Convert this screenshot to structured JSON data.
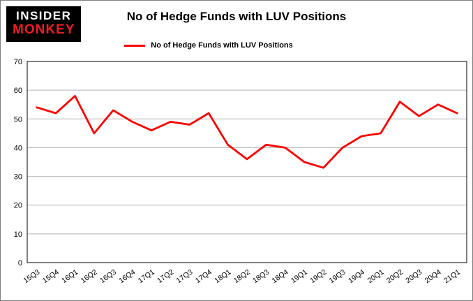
{
  "logo": {
    "line1": "INSIDER",
    "line2": "MONKEY"
  },
  "colors": {
    "line": "#fe0000",
    "grid": "#b5b5b5",
    "axis": "#000000",
    "logo_bg": "#000000",
    "logo_red": "#ee1c25"
  },
  "chart_data": {
    "type": "line",
    "title": "No of Hedge Funds with LUV Positions",
    "categories": [
      "15Q3",
      "15Q4",
      "16Q1",
      "16Q2",
      "16Q3",
      "16Q4",
      "17Q1",
      "17Q2",
      "17Q3",
      "17Q4",
      "18Q1",
      "18Q2",
      "18Q3",
      "18Q4",
      "19Q1",
      "19Q2",
      "19Q3",
      "19Q4",
      "20Q1",
      "20Q2",
      "20Q3",
      "20Q4",
      "21Q1"
    ],
    "series": [
      {
        "name": "No of Hedge Funds with LUV Positions",
        "values": [
          54,
          52,
          58,
          45,
          53,
          49,
          46,
          49,
          48,
          52,
          41,
          36,
          41,
          40,
          35,
          33,
          40,
          44,
          45,
          56,
          51,
          55,
          52
        ]
      }
    ],
    "xlabel": "",
    "ylabel": "",
    "ylim": [
      0,
      70
    ],
    "yticks": [
      0,
      10,
      20,
      30,
      40,
      50,
      60,
      70
    ],
    "grid": "horizontal",
    "legend_position": "top"
  }
}
